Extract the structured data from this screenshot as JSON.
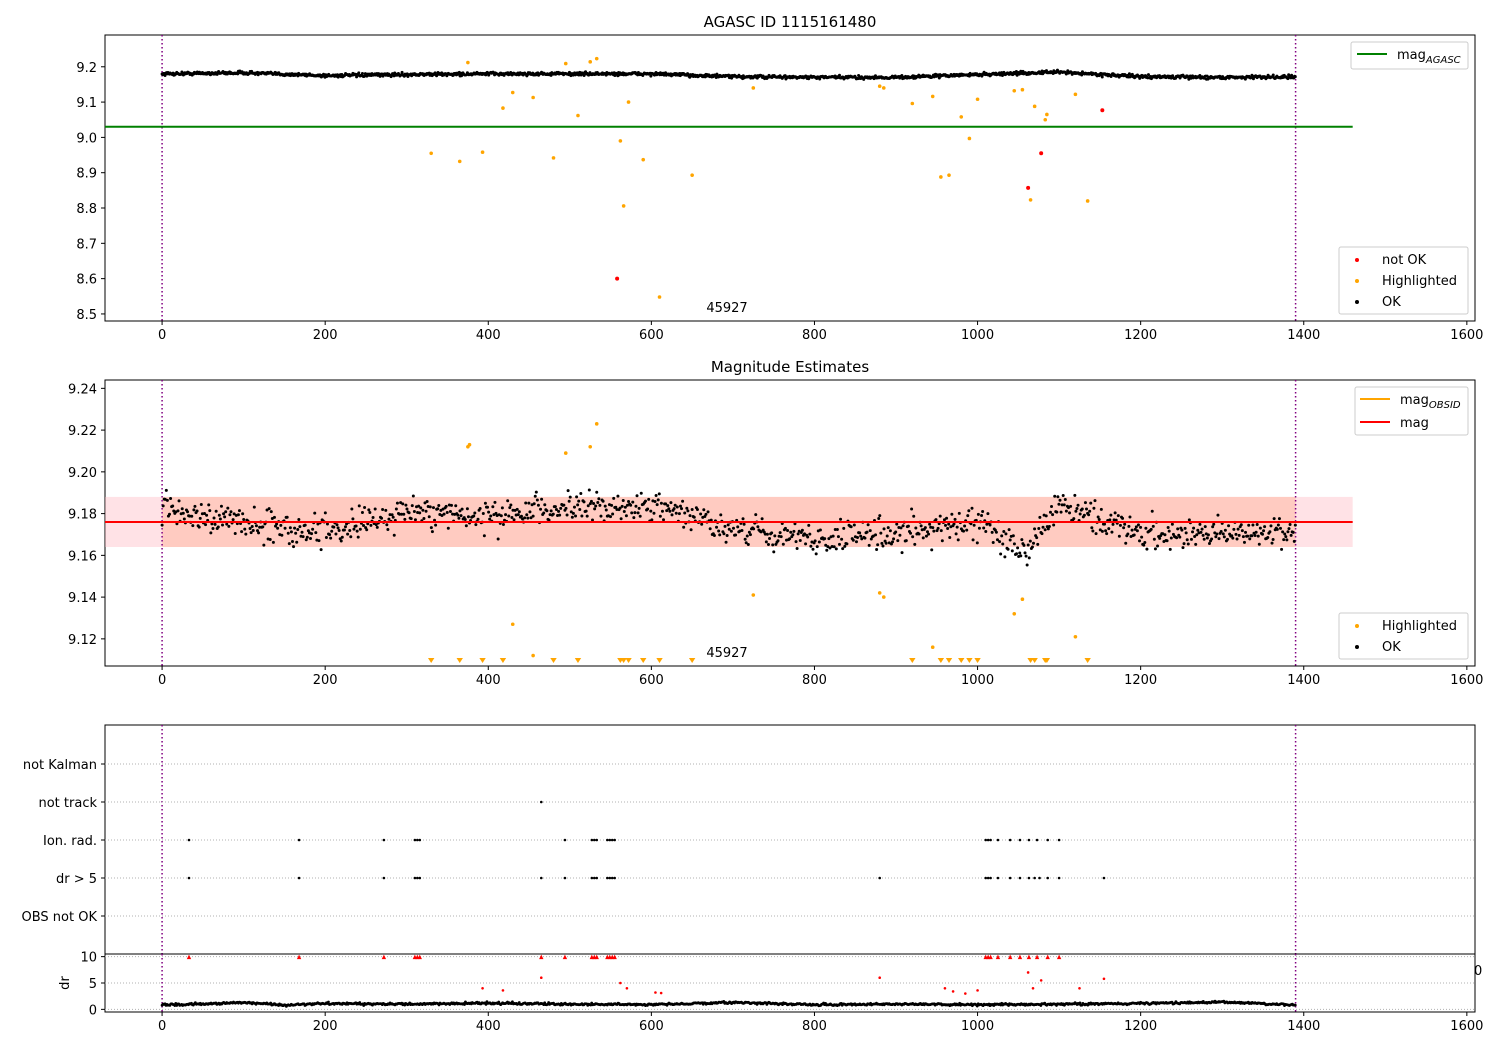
{
  "figure": {
    "x_ticks": [
      0,
      200,
      400,
      600,
      800,
      1000,
      1200,
      1400,
      1600
    ],
    "xlim": [
      -70,
      1610
    ],
    "obs_start": 0,
    "obs_end": 1390
  },
  "chart_data": [
    {
      "id": "agasc",
      "type": "scatter",
      "title": "AGASC ID 1115161480",
      "xlim": [
        -70,
        1610
      ],
      "ylim": [
        8.48,
        9.29
      ],
      "y_ticks": [
        "8.5",
        "8.6",
        "8.7",
        "8.8",
        "8.9",
        "9.0",
        "9.1",
        "9.2"
      ],
      "mag_agasc": 9.03,
      "mag_agasc_xrange": [
        -70,
        1460
      ],
      "annotation": "45927",
      "legend_line": {
        "label_base": "mag",
        "label_sub": "AGASC",
        "color": "#008000"
      },
      "legend_points": [
        {
          "label": "not OK",
          "color": "#ff0000"
        },
        {
          "label": "Highlighted",
          "color": "#ffa500"
        },
        {
          "label": "OK",
          "color": "#000000"
        }
      ],
      "ok_trend": [
        [
          0,
          9.18
        ],
        [
          100,
          9.183
        ],
        [
          200,
          9.175
        ],
        [
          300,
          9.178
        ],
        [
          400,
          9.18
        ],
        [
          500,
          9.18
        ],
        [
          600,
          9.18
        ],
        [
          700,
          9.172
        ],
        [
          800,
          9.17
        ],
        [
          900,
          9.17
        ],
        [
          1000,
          9.178
        ],
        [
          1100,
          9.185
        ],
        [
          1200,
          9.172
        ],
        [
          1300,
          9.17
        ],
        [
          1390,
          9.172
        ]
      ],
      "highlighted": [
        [
          330,
          8.955
        ],
        [
          365,
          8.932
        ],
        [
          375,
          9.212
        ],
        [
          393,
          8.958
        ],
        [
          418,
          9.083
        ],
        [
          430,
          9.127
        ],
        [
          455,
          9.113
        ],
        [
          480,
          8.942
        ],
        [
          495,
          9.209
        ],
        [
          510,
          9.062
        ],
        [
          525,
          9.214
        ],
        [
          533,
          9.223
        ],
        [
          562,
          8.99
        ],
        [
          566,
          8.806
        ],
        [
          572,
          9.1
        ],
        [
          590,
          8.937
        ],
        [
          610,
          8.548
        ],
        [
          650,
          8.893
        ],
        [
          725,
          9.14
        ],
        [
          880,
          9.145
        ],
        [
          885,
          9.14
        ],
        [
          920,
          9.096
        ],
        [
          945,
          9.116
        ],
        [
          955,
          8.888
        ],
        [
          965,
          8.893
        ],
        [
          980,
          9.058
        ],
        [
          990,
          8.997
        ],
        [
          1000,
          9.108
        ],
        [
          1045,
          9.132
        ],
        [
          1055,
          9.135
        ],
        [
          1065,
          8.823
        ],
        [
          1070,
          9.088
        ],
        [
          1083,
          9.05
        ],
        [
          1085,
          9.065
        ],
        [
          1120,
          9.122
        ],
        [
          1135,
          8.82
        ]
      ],
      "not_ok": [
        [
          558,
          8.6
        ],
        [
          1062,
          8.857
        ],
        [
          1078,
          8.955
        ],
        [
          1153,
          9.077
        ]
      ]
    },
    {
      "id": "magest",
      "type": "scatter",
      "title": "Magnitude Estimates",
      "xlim": [
        -70,
        1610
      ],
      "ylim": [
        9.107,
        9.244
      ],
      "y_ticks": [
        "9.12",
        "9.14",
        "9.16",
        "9.18",
        "9.20",
        "9.22",
        "9.24"
      ],
      "mag": 9.176,
      "band": [
        9.164,
        9.188
      ],
      "band_xrange": [
        -70,
        1460
      ],
      "mag_obsid_xrange": [
        0,
        1390
      ],
      "annotation": "45927",
      "legend_lines": [
        {
          "label_base": "mag",
          "label_sub": "OBSID",
          "color": "#ffa500"
        },
        {
          "label_base": "mag",
          "label_sub": "",
          "color": "#ff0000"
        }
      ],
      "legend_points": [
        {
          "label": "Highlighted",
          "color": "#ffa500"
        },
        {
          "label": "OK",
          "color": "#000000"
        }
      ],
      "ok_trend": [
        [
          0,
          9.183
        ],
        [
          100,
          9.175
        ],
        [
          200,
          9.172
        ],
        [
          300,
          9.18
        ],
        [
          400,
          9.178
        ],
        [
          500,
          9.182
        ],
        [
          600,
          9.185
        ],
        [
          700,
          9.172
        ],
        [
          800,
          9.168
        ],
        [
          900,
          9.17
        ],
        [
          1000,
          9.176
        ],
        [
          1060,
          9.162
        ],
        [
          1100,
          9.185
        ],
        [
          1200,
          9.17
        ],
        [
          1300,
          9.17
        ],
        [
          1390,
          9.172
        ]
      ],
      "highlighted": [
        [
          375,
          9.212
        ],
        [
          377,
          9.213
        ],
        [
          430,
          9.127
        ],
        [
          455,
          9.112
        ],
        [
          495,
          9.209
        ],
        [
          525,
          9.212
        ],
        [
          533,
          9.223
        ],
        [
          725,
          9.141
        ],
        [
          880,
          9.142
        ],
        [
          885,
          9.14
        ],
        [
          945,
          9.116
        ],
        [
          1045,
          9.132
        ],
        [
          1055,
          9.139
        ],
        [
          1120,
          9.121
        ]
      ],
      "below_markers": [
        330,
        365,
        393,
        418,
        480,
        510,
        562,
        566,
        572,
        590,
        610,
        650,
        920,
        955,
        965,
        980,
        990,
        1000,
        1065,
        1070,
        1083,
        1085,
        1135
      ]
    },
    {
      "id": "flags",
      "type": "scatter",
      "xlim": [
        -70,
        1610
      ],
      "categories": [
        "OBS not OK",
        "dr > 5",
        "Ion. rad.",
        "not track",
        "not Kalman"
      ],
      "points": {
        "not Kalman": [],
        "not track": [
          465
        ],
        "Ion. rad.": [
          33,
          168,
          272,
          310,
          313,
          316,
          494,
          527,
          530,
          533,
          546,
          549,
          552,
          555,
          1010,
          1013,
          1016,
          1025,
          1040,
          1052,
          1063,
          1073,
          1086,
          1100
        ],
        "dr > 5": [
          33,
          168,
          272,
          310,
          313,
          316,
          465,
          494,
          527,
          530,
          533,
          546,
          549,
          552,
          555,
          880,
          1010,
          1013,
          1016,
          1025,
          1040,
          1052,
          1063,
          1070,
          1076,
          1086,
          1100,
          1155
        ],
        "OBS not OK": []
      }
    },
    {
      "id": "dr",
      "type": "scatter",
      "ylabel": "dr",
      "xlim": [
        -70,
        1610
      ],
      "ylim": [
        -0.5,
        10.5
      ],
      "y_ticks": [
        "0",
        "5",
        "10"
      ],
      "clip_label": "0",
      "dr_trend": [
        [
          0,
          0.8
        ],
        [
          100,
          1.3
        ],
        [
          150,
          0.8
        ],
        [
          200,
          1.1
        ],
        [
          300,
          1.0
        ],
        [
          400,
          1.2
        ],
        [
          500,
          1.0
        ],
        [
          600,
          0.9
        ],
        [
          700,
          1.3
        ],
        [
          800,
          0.9
        ],
        [
          900,
          1.0
        ],
        [
          1000,
          0.9
        ],
        [
          1100,
          1.0
        ],
        [
          1200,
          1.1
        ],
        [
          1300,
          1.4
        ],
        [
          1390,
          0.8
        ]
      ],
      "red_high": [
        33,
        168,
        272,
        310,
        313,
        316,
        465,
        494,
        527,
        530,
        533,
        546,
        549,
        552,
        555,
        1010,
        1013,
        1016,
        1025,
        1040,
        1052,
        1063,
        1073,
        1086,
        1100
      ],
      "red_mid": [
        [
          393,
          4
        ],
        [
          418,
          3.6
        ],
        [
          465,
          6
        ],
        [
          562,
          5
        ],
        [
          570,
          4
        ],
        [
          605,
          3.2
        ],
        [
          612,
          3.1
        ],
        [
          880,
          6
        ],
        [
          960,
          4
        ],
        [
          970,
          3.4
        ],
        [
          985,
          3
        ],
        [
          1000,
          3.6
        ],
        [
          1062,
          7
        ],
        [
          1068,
          4
        ],
        [
          1078,
          5.5
        ],
        [
          1125,
          4
        ],
        [
          1155,
          5.8
        ]
      ]
    }
  ]
}
